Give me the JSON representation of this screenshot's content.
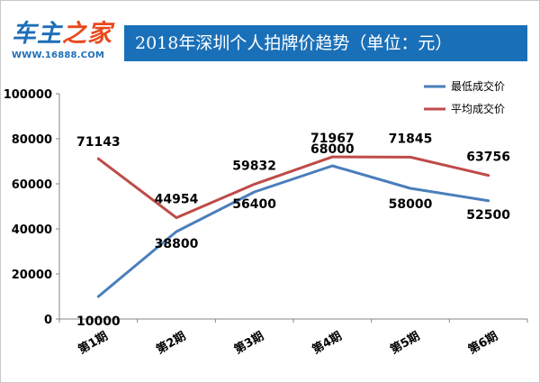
{
  "logo": {
    "name_part1": "车主",
    "name_part2": "之家",
    "url": "WWW.16888.COM"
  },
  "chart_data": {
    "type": "line",
    "title": "2018年深圳个人拍牌价趋势（单位：元）",
    "categories": [
      "第1期",
      "第2期",
      "第3期",
      "第4期",
      "第5期",
      "第6期"
    ],
    "ylim": [
      0,
      100000
    ],
    "yticks": [
      0,
      20000,
      40000,
      60000,
      80000,
      100000
    ],
    "grid": false,
    "legend_position": "top-right",
    "series": [
      {
        "name": "最低成交价",
        "color": "#4a7ebb",
        "values": [
          10000,
          38800,
          56400,
          68000,
          58000,
          52500
        ]
      },
      {
        "name": "平均成交价",
        "color": "#be4b48",
        "values": [
          71143,
          44954,
          59832,
          71967,
          71845,
          63756
        ]
      }
    ]
  }
}
